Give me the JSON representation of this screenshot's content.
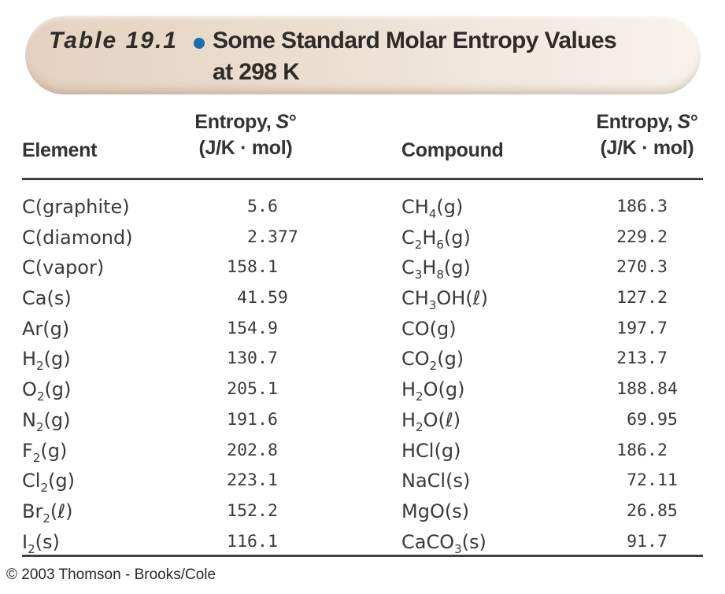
{
  "title": {
    "table_label": "Table 19.1",
    "line1": "Some Standard Molar Entropy Values",
    "line2": "at 298 K"
  },
  "columns": {
    "element": "Element",
    "compound": "Compound",
    "entropy_prefix": "Entropy,",
    "entropy_symbol": "S",
    "entropy_degree": "°",
    "entropy_units": "(J/K · mol)"
  },
  "table": {
    "elements": [
      {
        "formula": "C(graphite)",
        "entropy": "5.6"
      },
      {
        "formula": "C(diamond)",
        "entropy": "2.377"
      },
      {
        "formula": "C(vapor)",
        "entropy": "158.1"
      },
      {
        "formula": "Ca(s)",
        "entropy": "41.59"
      },
      {
        "formula": "Ar(g)",
        "entropy": "154.9"
      },
      {
        "formula": "H_2_(g)",
        "entropy": "130.7"
      },
      {
        "formula": "O_2_(g)",
        "entropy": "205.1"
      },
      {
        "formula": "N_2_(g)",
        "entropy": "191.6"
      },
      {
        "formula": "F_2_(g)",
        "entropy": "202.8"
      },
      {
        "formula": "Cl_2_(g)",
        "entropy": "223.1"
      },
      {
        "formula": "Br_2_(ℓ)",
        "entropy": "152.2"
      },
      {
        "formula": "I_2_(s)",
        "entropy": "116.1"
      }
    ],
    "compounds": [
      {
        "formula": "CH_4_(g)",
        "entropy": "186.3"
      },
      {
        "formula": "C_2_H_6_(g)",
        "entropy": "229.2"
      },
      {
        "formula": "C_3_H_8_(g)",
        "entropy": "270.3"
      },
      {
        "formula": "CH_3_OH(ℓ)",
        "entropy": "127.2"
      },
      {
        "formula": "CO(g)",
        "entropy": "197.7"
      },
      {
        "formula": "CO_2_(g)",
        "entropy": "213.7"
      },
      {
        "formula": "H_2_O(g)",
        "entropy": "188.84"
      },
      {
        "formula": "H_2_O(ℓ)",
        "entropy": "69.95"
      },
      {
        "formula": "HCl(g)",
        "entropy": "186.2"
      },
      {
        "formula": "NaCl(s)",
        "entropy": "72.11"
      },
      {
        "formula": "MgO(s)",
        "entropy": "26.85"
      },
      {
        "formula": "CaCO_3_(s)",
        "entropy": "91.7"
      }
    ]
  },
  "footer": {
    "copyright": "© 2003 Thomson - Brooks/Cole"
  },
  "colors": {
    "background": "#ffffff",
    "pill_gradient_left": "#e4d2c0",
    "pill_gradient_right": "#f8f3ee",
    "bullet_blue": "#1a6db2",
    "text": "#3a3a3a",
    "rule": "#3f3f3f"
  }
}
